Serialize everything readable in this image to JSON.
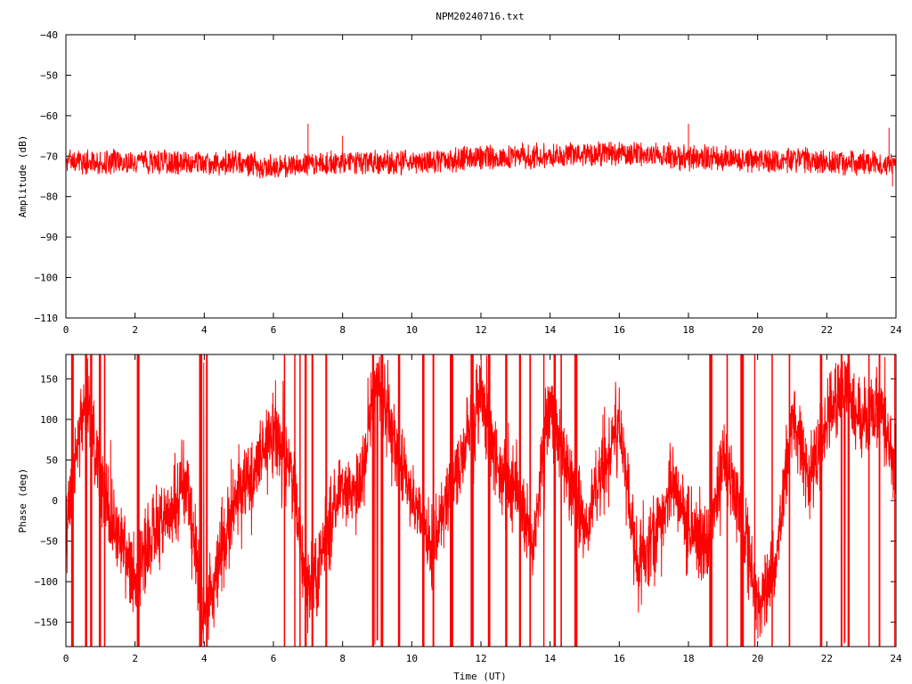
{
  "title": "NPM20240716.txt",
  "chart_data": [
    {
      "type": "line",
      "panel": "amplitude",
      "title": "NPM20240716.txt",
      "xlabel": "",
      "ylabel": "Amplitude (dB)",
      "xlim": [
        0,
        24
      ],
      "ylim": [
        -110,
        -40
      ],
      "xticks": [
        0,
        2,
        4,
        6,
        8,
        10,
        12,
        14,
        16,
        18,
        20,
        22,
        24
      ],
      "yticks": [
        -40,
        -50,
        -60,
        -70,
        -80,
        -90,
        -100,
        -110
      ],
      "color": "#ff0000",
      "series": [
        {
          "x": [
            0,
            1,
            2,
            3,
            4,
            5,
            6,
            7,
            8,
            9,
            10,
            11,
            12,
            13,
            14,
            15,
            16,
            17,
            18,
            19,
            20,
            21,
            22,
            23,
            24
          ],
          "y": [
            -71.5,
            -71.5,
            -71.5,
            -71.5,
            -71.5,
            -71.5,
            -72.5,
            -72,
            -71.5,
            -71.5,
            -71.5,
            -71,
            -70.5,
            -70,
            -70,
            -69.5,
            -69.5,
            -69.5,
            -70.5,
            -70.5,
            -71,
            -71,
            -71.5,
            -71.5,
            -72
          ]
        }
      ],
      "band_half_width": [
        3.5
      ],
      "spikes": [
        {
          "x": 7,
          "y": -62
        },
        {
          "x": 8,
          "y": -65
        },
        {
          "x": 18,
          "y": -62
        },
        {
          "x": 23.8,
          "y": -63
        },
        {
          "x": 23.9,
          "y": -77.5
        }
      ]
    },
    {
      "type": "line",
      "panel": "phase",
      "xlabel": "Time (UT)",
      "ylabel": "Phase (deg)",
      "xlim": [
        0,
        24
      ],
      "ylim": [
        -180,
        180
      ],
      "xticks": [
        0,
        2,
        4,
        6,
        8,
        10,
        12,
        14,
        16,
        18,
        20,
        22,
        24
      ],
      "yticks": [
        150,
        100,
        50,
        0,
        -50,
        -100,
        -150
      ],
      "color": "#ff0000",
      "series": [
        {
          "x": [
            0,
            0.3,
            0.6,
            1,
            1.5,
            2,
            2.5,
            3,
            3.5,
            4,
            4.5,
            5,
            5.5,
            6,
            6.5,
            7,
            7.5,
            8,
            8.5,
            9,
            9.5,
            10,
            10.5,
            11,
            11.5,
            12,
            12.5,
            13,
            13.5,
            14,
            14.5,
            15,
            15.5,
            16,
            16.5,
            17,
            17.5,
            18,
            18.5,
            19,
            19.5,
            20,
            20.5,
            21,
            21.5,
            22,
            22.5,
            23,
            23.5,
            24
          ],
          "y": [
            -40,
            60,
            140,
            20,
            -40,
            -100,
            -40,
            -20,
            30,
            -150,
            -60,
            10,
            40,
            90,
            40,
            -120,
            -50,
            30,
            10,
            160,
            60,
            10,
            -60,
            -10,
            60,
            130,
            40,
            20,
            -60,
            120,
            40,
            -40,
            30,
            100,
            -80,
            -50,
            20,
            -30,
            -60,
            50,
            0,
            -130,
            -80,
            110,
            30,
            100,
            140,
            90,
            120,
            40
          ]
        }
      ],
      "jitter": 50,
      "wrap_events": [
        0.15,
        0.55,
        0.7,
        0.95,
        1.1,
        2.05,
        3.85,
        3.9,
        4.05,
        6.3,
        6.6,
        6.75,
        6.9,
        7.1,
        7.5,
        8.85,
        9.1,
        9.6,
        10.3,
        10.6,
        11.1,
        11.7,
        12.2,
        12.7,
        13.1,
        13.4,
        13.8,
        14.1,
        14.3,
        14.7,
        18.6,
        19.1,
        19.5,
        19.9,
        20.4,
        20.9,
        21.8,
        22.4,
        22.6,
        23.2,
        23.5,
        23.95
      ]
    }
  ]
}
